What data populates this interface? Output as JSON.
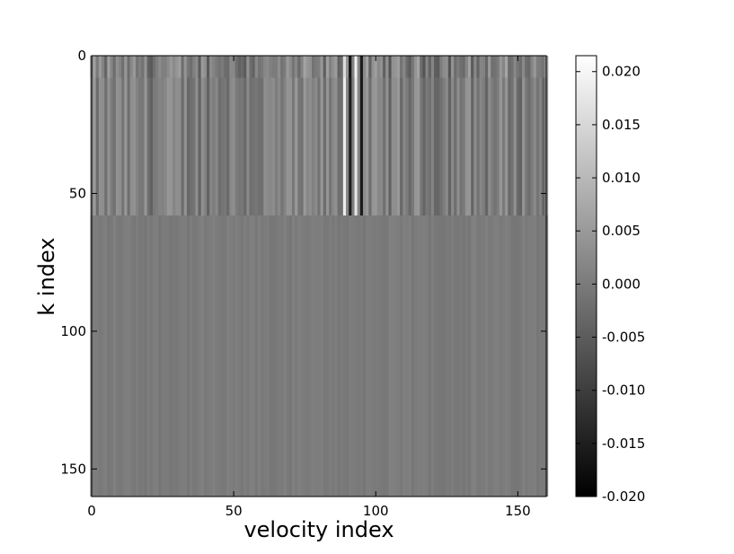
{
  "chart_data": {
    "type": "heatmap",
    "title": "",
    "xlabel": "velocity index",
    "ylabel": "k index",
    "x_range": [
      0,
      160
    ],
    "y_range": [
      0,
      160
    ],
    "y_inverted": true,
    "x_ticks": [
      0,
      50,
      100,
      150
    ],
    "x_tick_labels": [
      "0",
      "50",
      "100",
      "150"
    ],
    "y_ticks": [
      0,
      50,
      100,
      150
    ],
    "y_tick_labels": [
      "0",
      "50",
      "100",
      "150"
    ],
    "colormap": "gray",
    "colorbar": {
      "min": -0.02,
      "max": 0.0215,
      "ticks": [
        0.02,
        0.015,
        0.01,
        0.005,
        0.0,
        -0.005,
        -0.01,
        -0.015,
        -0.02
      ],
      "tick_labels": [
        "0.020",
        "0.015",
        "0.010",
        "0.005",
        "0.000",
        "-0.005",
        "-0.010",
        "-0.015",
        "-0.020"
      ]
    },
    "pattern": {
      "dominant_value": 0.0,
      "structured_k_range": [
        0,
        58
      ],
      "bright_stripes_velocity": [
        89,
        93
      ],
      "dark_stripes_velocity": [
        91,
        95
      ],
      "peak_value": 0.02,
      "trough_value": -0.018
    }
  },
  "colors": {
    "background": "#ffffff",
    "axes": "#000000",
    "neutral_gray": "#808080"
  }
}
